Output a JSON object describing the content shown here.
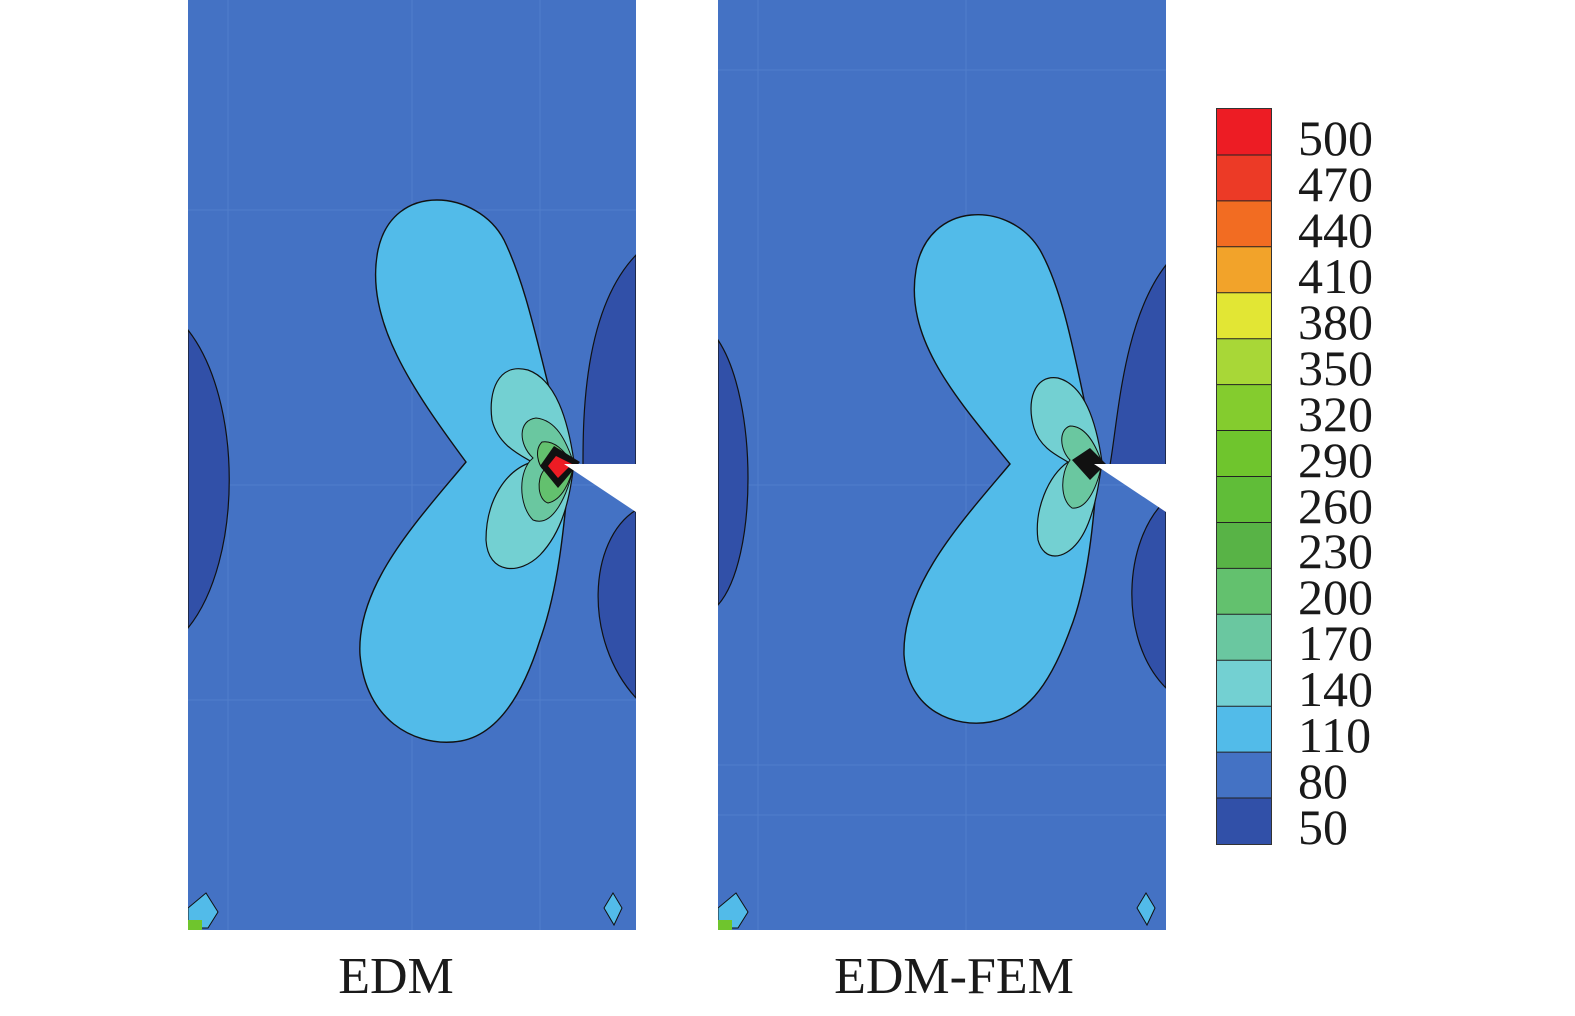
{
  "panels": [
    {
      "caption": "EDM"
    },
    {
      "caption": "EDM-FEM"
    }
  ],
  "legend": {
    "labels": [
      "500",
      "470",
      "440",
      "410",
      "380",
      "350",
      "320",
      "290",
      "260",
      "230",
      "200",
      "170",
      "140",
      "110",
      "80",
      "50"
    ],
    "colors": [
      "#ed1c24",
      "#ec3a26",
      "#f26c22",
      "#f2a32a",
      "#e2e634",
      "#a8d737",
      "#84cc2e",
      "#6fc52d",
      "#60bd38",
      "#58b346",
      "#63c16e",
      "#6ac7a0",
      "#73d0d2",
      "#52bbe9",
      "#4472c4",
      "#3150a8"
    ]
  },
  "colors": {
    "background_field": "#4472c4",
    "low_field": "#3150a8",
    "lobe": "#52bbe9",
    "inner": "#73d0d2",
    "mid": "#6ac7a0",
    "peak": "#ed1c24"
  }
}
